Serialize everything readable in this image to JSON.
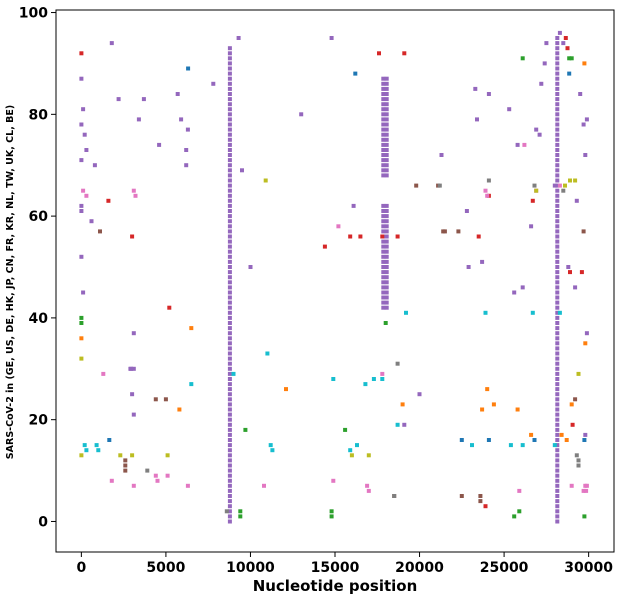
{
  "chart_data": {
    "type": "scatter",
    "title": "",
    "xlabel": "Nucleotide position",
    "ylabel": "SARS-CoV-2 in (GE, US, DE, HK, JP, CN, FR, KR, NL, TW, UK, CL, BE)",
    "xlim": [
      -1500,
      31500
    ],
    "ylim": [
      -6,
      100.5
    ],
    "xticks": [
      0,
      5000,
      10000,
      15000,
      20000,
      25000,
      30000
    ],
    "yticks": [
      0,
      20,
      40,
      60,
      80,
      100
    ],
    "grid": false,
    "palette": {
      "blue": "#1f77b4",
      "orange": "#ff7f0e",
      "green": "#2ca02c",
      "red": "#d62728",
      "purple": "#9467bd",
      "brown": "#8c564b",
      "pink": "#e377c2",
      "gray": "#7f7f7f",
      "olive": "#bcbd22",
      "cyan": "#17becf"
    },
    "columns": [
      {
        "x": 8782,
        "y_min": 0,
        "y_max": 93,
        "color": "purple",
        "name": "column-8782"
      },
      {
        "x": 28144,
        "y_min": 0,
        "y_max": 95,
        "color": "purple",
        "name": "column-28144"
      },
      {
        "x": 17858,
        "y_min": 68,
        "y_max": 87,
        "color": "purple",
        "name": "column-17858-upper"
      },
      {
        "x": 18060,
        "y_min": 68,
        "y_max": 87,
        "color": "purple",
        "name": "column-18060-upper"
      },
      {
        "x": 17858,
        "y_min": 42,
        "y_max": 62,
        "color": "purple",
        "name": "column-17858-lower"
      },
      {
        "x": 18060,
        "y_min": 42,
        "y_max": 62,
        "color": "purple",
        "name": "column-18060-lower"
      }
    ],
    "series": [
      {
        "name": "blue",
        "color": "blue",
        "x": [
          6310,
          16200,
          22500,
          24100,
          26800,
          28850,
          29750,
          1650
        ],
        "y": [
          89,
          88,
          16,
          16,
          16,
          88,
          16,
          16
        ]
      },
      {
        "name": "orange",
        "color": "orange",
        "x": [
          0,
          6500,
          5800,
          12100,
          19000,
          23700,
          24000,
          24400,
          25800,
          26600,
          29000,
          29800,
          29750,
          28400,
          28700
        ],
        "y": [
          36,
          38,
          22,
          26,
          23,
          22,
          26,
          23,
          22,
          17,
          23,
          35,
          90,
          17,
          16
        ]
      },
      {
        "name": "green",
        "color": "green",
        "x": [
          0,
          0,
          9400,
          9400,
          9700,
          14800,
          14800,
          15600,
          18000,
          25600,
          25900,
          26100,
          28850,
          29000,
          29750
        ],
        "y": [
          39,
          40,
          1,
          2,
          18,
          1,
          2,
          18,
          39,
          1,
          2,
          91,
          91,
          91,
          1
        ]
      },
      {
        "name": "red",
        "color": "red",
        "x": [
          0,
          1600,
          3000,
          5200,
          14400,
          15900,
          16500,
          17600,
          17800,
          18700,
          19100,
          23500,
          23900,
          24100,
          26700,
          28650,
          28900,
          29050,
          29600,
          28750
        ],
        "y": [
          92,
          63,
          56,
          42,
          54,
          56,
          56,
          92,
          56,
          56,
          92,
          56,
          3,
          64,
          63,
          95,
          49,
          19,
          49,
          93
        ]
      },
      {
        "name": "purple",
        "color": "purple",
        "x": [
          0,
          100,
          200,
          300,
          0,
          0,
          100,
          600,
          800,
          1800,
          2200,
          3400,
          3700,
          4600,
          5700,
          5900,
          6200,
          6300,
          6200,
          3100,
          3100,
          3000,
          3100,
          7800,
          9300,
          9500,
          10000,
          13000,
          14800,
          16100,
          19100,
          20000,
          21300,
          22800,
          22900,
          23300,
          23400,
          23700,
          24100,
          25300,
          25600,
          25800,
          26100,
          26600,
          26900,
          27100,
          27200,
          27400,
          27500,
          28000,
          28300,
          28500,
          28800,
          29200,
          29300,
          29500,
          29700,
          29800,
          29900,
          29800,
          29900,
          2900,
          2950,
          0,
          0,
          0
        ],
        "y": [
          87,
          81,
          76,
          73,
          78,
          71,
          45,
          59,
          70,
          94,
          83,
          79,
          83,
          74,
          84,
          79,
          73,
          77,
          70,
          37,
          30,
          25,
          21,
          86,
          95,
          69,
          50,
          80,
          95,
          62,
          19,
          25,
          72,
          61,
          50,
          85,
          79,
          51,
          84,
          81,
          45,
          74,
          46,
          58,
          77,
          76,
          86,
          90,
          94,
          66,
          96,
          94,
          50,
          46,
          63,
          84,
          78,
          72,
          37,
          17,
          79,
          30,
          30,
          52,
          61,
          62
        ]
      },
      {
        "name": "brown",
        "color": "brown",
        "x": [
          1100,
          2600,
          2600,
          2600,
          4400,
          5000,
          18500,
          19800,
          21100,
          21500,
          21400,
          22300,
          22500,
          23600,
          23600,
          29200,
          29700
        ],
        "y": [
          57,
          12,
          11,
          10,
          24,
          24,
          5,
          66,
          66,
          57,
          57,
          57,
          5,
          5,
          4,
          24,
          57
        ]
      },
      {
        "name": "pink",
        "color": "pink",
        "x": [
          100,
          300,
          1300,
          1800,
          3100,
          3200,
          3100,
          4400,
          4500,
          5100,
          6300,
          10800,
          14900,
          15200,
          16900,
          17000,
          17800,
          23900,
          24000,
          25900,
          26200,
          26900,
          28300,
          29000,
          29700,
          29800,
          29850,
          29900
        ],
        "y": [
          65,
          64,
          29,
          8,
          65,
          64,
          7,
          9,
          8,
          9,
          7,
          7,
          8,
          58,
          7,
          6,
          29,
          65,
          64,
          6,
          74,
          65,
          66,
          7,
          6,
          7,
          6,
          7
        ]
      },
      {
        "name": "gray",
        "color": "gray",
        "x": [
          3900,
          8600,
          18500,
          18700,
          21200,
          24100,
          26800,
          28500,
          29300,
          29400,
          29400
        ],
        "y": [
          10,
          2,
          5,
          31,
          66,
          67,
          66,
          65,
          13,
          12,
          11
        ]
      },
      {
        "name": "olive",
        "color": "olive",
        "x": [
          0,
          0,
          2300,
          3000,
          5100,
          10900,
          16000,
          17000,
          26900,
          28600,
          28900,
          29200,
          29400
        ],
        "y": [
          32,
          13,
          13,
          13,
          13,
          67,
          13,
          13,
          65,
          66,
          67,
          67,
          29
        ]
      },
      {
        "name": "cyan",
        "color": "cyan",
        "x": [
          200,
          300,
          900,
          1000,
          6500,
          9000,
          11000,
          11200,
          11300,
          14900,
          15900,
          16300,
          16800,
          17300,
          17800,
          18700,
          19200,
          23100,
          23900,
          25400,
          26100,
          26700,
          28000,
          28300
        ],
        "y": [
          15,
          14,
          15,
          14,
          27,
          29,
          33,
          15,
          14,
          28,
          14,
          15,
          27,
          28,
          28,
          19,
          41,
          15,
          41,
          15,
          15,
          41,
          15,
          41
        ]
      }
    ]
  }
}
